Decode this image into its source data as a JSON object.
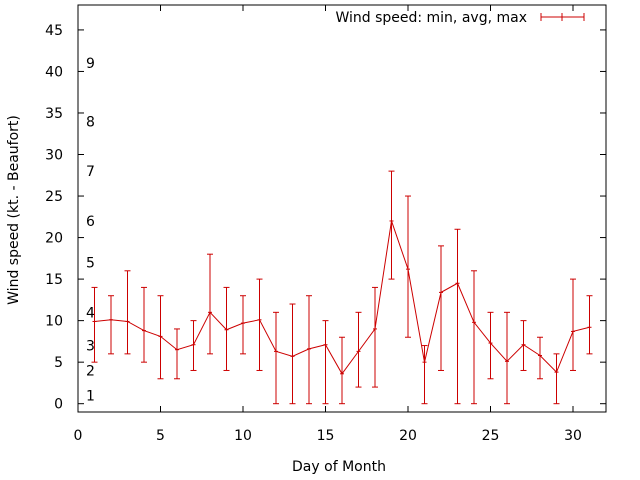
{
  "chart_data": {
    "type": "line",
    "title": "",
    "xlabel": "Day of Month",
    "ylabel": "Wind speed (kt. - Beaufort)",
    "xlim": [
      0,
      32
    ],
    "ylim": [
      -1,
      48
    ],
    "xticks": [
      0,
      5,
      10,
      15,
      20,
      25,
      30
    ],
    "yticks": [
      0,
      5,
      10,
      15,
      20,
      25,
      30,
      35,
      40,
      45
    ],
    "grid": false,
    "legend_position": "top-right",
    "beaufort_labels": [
      {
        "label": "1",
        "value": 1
      },
      {
        "label": "2",
        "value": 4
      },
      {
        "label": "3",
        "value": 7
      },
      {
        "label": "4",
        "value": 11
      },
      {
        "label": "5",
        "value": 17
      },
      {
        "label": "6",
        "value": 22
      },
      {
        "label": "7",
        "value": 28
      },
      {
        "label": "8",
        "value": 34
      },
      {
        "label": "9",
        "value": 41
      }
    ],
    "series": [
      {
        "name": "Wind speed: min, avg, max",
        "color": "#cc0000",
        "points": [
          {
            "x": 1,
            "min": 5,
            "avg": 9.9,
            "max": 14
          },
          {
            "x": 2,
            "min": 6,
            "avg": 10.1,
            "max": 13
          },
          {
            "x": 3,
            "min": 6,
            "avg": 9.9,
            "max": 16
          },
          {
            "x": 4,
            "min": 5,
            "avg": 8.8,
            "max": 14
          },
          {
            "x": 5,
            "min": 3,
            "avg": 8.1,
            "max": 13
          },
          {
            "x": 6,
            "min": 3,
            "avg": 6.5,
            "max": 9
          },
          {
            "x": 7,
            "min": 4,
            "avg": 7.1,
            "max": 10
          },
          {
            "x": 8,
            "min": 6,
            "avg": 11,
            "max": 18
          },
          {
            "x": 9,
            "min": 4,
            "avg": 8.9,
            "max": 14
          },
          {
            "x": 10,
            "min": 6,
            "avg": 9.7,
            "max": 13
          },
          {
            "x": 11,
            "min": 4,
            "avg": 10.1,
            "max": 15
          },
          {
            "x": 12,
            "min": 0,
            "avg": 6.3,
            "max": 11
          },
          {
            "x": 13,
            "min": 0,
            "avg": 5.7,
            "max": 12
          },
          {
            "x": 14,
            "min": 0,
            "avg": 6.6,
            "max": 13
          },
          {
            "x": 15,
            "min": 0,
            "avg": 7.1,
            "max": 10
          },
          {
            "x": 16,
            "min": 0,
            "avg": 3.6,
            "max": 8
          },
          {
            "x": 17,
            "min": 2,
            "avg": 6.3,
            "max": 11
          },
          {
            "x": 18,
            "min": 2,
            "avg": 9.0,
            "max": 14
          },
          {
            "x": 19,
            "min": 15,
            "avg": 22,
            "max": 28
          },
          {
            "x": 20,
            "min": 8,
            "avg": 16.2,
            "max": 25
          },
          {
            "x": 21,
            "min": 0,
            "avg": 5.0,
            "max": 7
          },
          {
            "x": 22,
            "min": 4,
            "avg": 13.4,
            "max": 19
          },
          {
            "x": 23,
            "min": 0,
            "avg": 14.5,
            "max": 21
          },
          {
            "x": 24,
            "min": 0,
            "avg": 9.8,
            "max": 16
          },
          {
            "x": 25,
            "min": 3,
            "avg": 7.3,
            "max": 11
          },
          {
            "x": 26,
            "min": 0,
            "avg": 5.1,
            "max": 11
          },
          {
            "x": 27,
            "min": 4,
            "avg": 7.1,
            "max": 10
          },
          {
            "x": 28,
            "min": 3,
            "avg": 5.8,
            "max": 8
          },
          {
            "x": 29,
            "min": 0,
            "avg": 3.8,
            "max": 6
          },
          {
            "x": 30,
            "min": 4,
            "avg": 8.7,
            "max": 15
          },
          {
            "x": 31,
            "min": 6,
            "avg": 9.2,
            "max": 13
          }
        ]
      }
    ]
  }
}
